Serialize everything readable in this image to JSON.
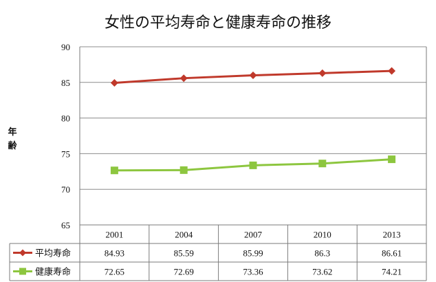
{
  "chart_data": {
    "type": "line",
    "title": "女性の平均寿命と健康寿命の推移",
    "ylabel": "年齢",
    "xlabel": "",
    "categories": [
      "2001",
      "2004",
      "2007",
      "2010",
      "2013"
    ],
    "ylim": [
      65,
      90
    ],
    "yticks": [
      "65",
      "70",
      "75",
      "80",
      "85",
      "90"
    ],
    "grid": true,
    "legend": "data-table",
    "series": [
      {
        "name": "平均寿命",
        "values": [
          84.93,
          85.59,
          85.99,
          86.3,
          86.61
        ],
        "labels": [
          "84.93",
          "85.59",
          "85.99",
          "86.3",
          "86.61"
        ],
        "color": "#c0392b",
        "marker": "diamond"
      },
      {
        "name": "健康寿命",
        "values": [
          72.65,
          72.69,
          73.36,
          73.62,
          74.21
        ],
        "labels": [
          "72.65",
          "72.69",
          "73.36",
          "73.62",
          "74.21"
        ],
        "color": "#8dc63f",
        "marker": "square"
      }
    ]
  }
}
